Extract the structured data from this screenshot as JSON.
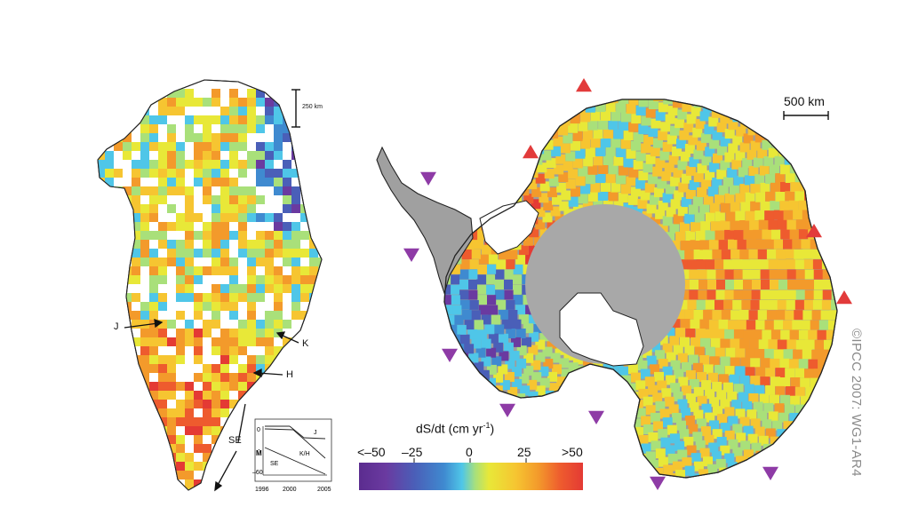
{
  "greenland": {
    "scale_label": "250 km",
    "labels": {
      "J": "J",
      "K": "K",
      "H": "H",
      "SE": "SE"
    },
    "inset": {
      "y_ticks": [
        "0",
        "–60"
      ],
      "y_axis_symbol": "Ṁ",
      "x_ticks": [
        "1996",
        "2000",
        "2005"
      ],
      "series_labels": [
        "J",
        "K/H",
        "SE"
      ]
    }
  },
  "antarctica": {
    "scale_label": "500 km"
  },
  "colorbar": {
    "title": "dS/dt (cm yr",
    "title_sup": "-1",
    "title_end": ")",
    "ticks": [
      "<–50",
      "–25",
      "0",
      "25",
      ">50"
    ],
    "colors": [
      "#5b2c8f",
      "#6a3aa0",
      "#4a5fb8",
      "#3f8ad0",
      "#4fc6e8",
      "#a9e07a",
      "#e8e838",
      "#f6c531",
      "#f39a2b",
      "#ee5b2e",
      "#e43a34"
    ]
  },
  "markers": {
    "increase_color": "#e23b3b",
    "decrease_color": "#8e3ba6"
  },
  "credit": "©IPCC  2007: WG1-AR4"
}
